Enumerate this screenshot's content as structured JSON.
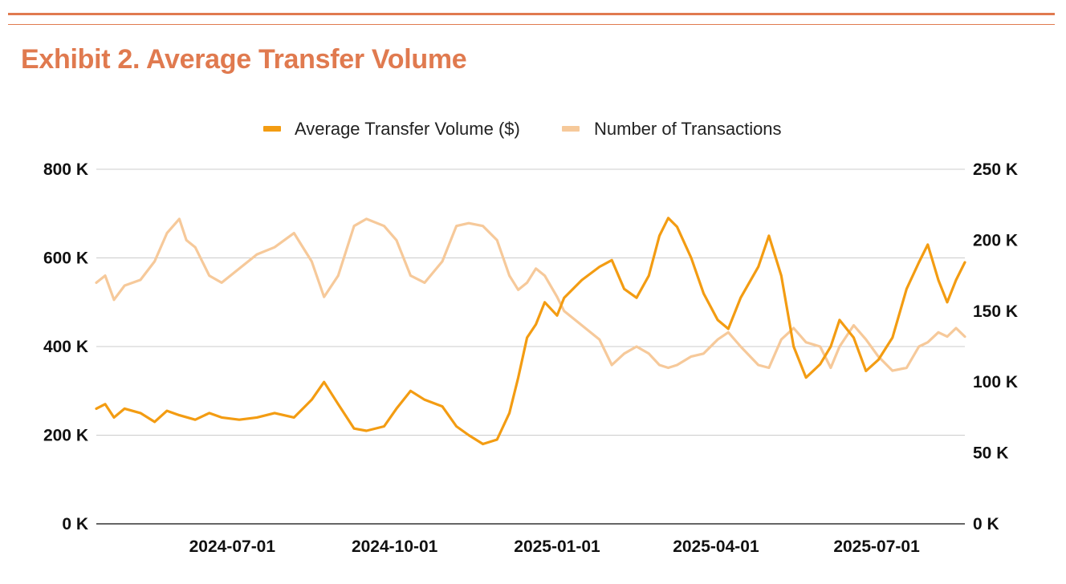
{
  "page": {
    "title": "Exhibit 2. Average Transfer Volume",
    "accent_color": "#e07a4f"
  },
  "chart_data": {
    "type": "line",
    "legend_placement": "top-center",
    "grid": true,
    "x_range": [
      "2024-04-15",
      "2025-08-20"
    ],
    "x_ticks": [
      "2024-07-01",
      "2024-10-01",
      "2025-01-01",
      "2025-04-01",
      "2025-07-01"
    ],
    "y_left": {
      "range": [
        0,
        800000
      ],
      "ticks": [
        0,
        200000,
        400000,
        600000,
        800000
      ],
      "tick_labels": [
        "0 K",
        "200 K",
        "400 K",
        "600 K",
        "800 K"
      ]
    },
    "y_right": {
      "range": [
        0,
        250000
      ],
      "ticks": [
        0,
        50000,
        100000,
        150000,
        200000,
        250000
      ],
      "tick_labels": [
        "0 K",
        "50 K",
        "100 K",
        "150 K",
        "200 K",
        "250 K"
      ]
    },
    "series": [
      {
        "name": "Average Transfer Volume ($)",
        "axis": "left",
        "color": "#f39c12",
        "points": [
          [
            "2024-04-15",
            260000
          ],
          [
            "2024-04-20",
            270000
          ],
          [
            "2024-04-25",
            240000
          ],
          [
            "2024-05-01",
            260000
          ],
          [
            "2024-05-10",
            250000
          ],
          [
            "2024-05-18",
            230000
          ],
          [
            "2024-05-25",
            255000
          ],
          [
            "2024-06-01",
            245000
          ],
          [
            "2024-06-10",
            235000
          ],
          [
            "2024-06-18",
            250000
          ],
          [
            "2024-06-25",
            240000
          ],
          [
            "2024-07-05",
            235000
          ],
          [
            "2024-07-15",
            240000
          ],
          [
            "2024-07-25",
            250000
          ],
          [
            "2024-08-05",
            240000
          ],
          [
            "2024-08-15",
            280000
          ],
          [
            "2024-08-22",
            320000
          ],
          [
            "2024-08-30",
            270000
          ],
          [
            "2024-09-08",
            215000
          ],
          [
            "2024-09-15",
            210000
          ],
          [
            "2024-09-25",
            220000
          ],
          [
            "2024-10-02",
            260000
          ],
          [
            "2024-10-10",
            300000
          ],
          [
            "2024-10-18",
            280000
          ],
          [
            "2024-10-28",
            265000
          ],
          [
            "2024-11-05",
            220000
          ],
          [
            "2024-11-12",
            200000
          ],
          [
            "2024-11-20",
            180000
          ],
          [
            "2024-11-28",
            190000
          ],
          [
            "2024-12-05",
            250000
          ],
          [
            "2024-12-10",
            330000
          ],
          [
            "2024-12-15",
            420000
          ],
          [
            "2024-12-20",
            450000
          ],
          [
            "2024-12-25",
            500000
          ],
          [
            "2025-01-01",
            470000
          ],
          [
            "2025-01-05",
            510000
          ],
          [
            "2025-01-15",
            550000
          ],
          [
            "2025-01-25",
            580000
          ],
          [
            "2025-02-01",
            595000
          ],
          [
            "2025-02-08",
            530000
          ],
          [
            "2025-02-15",
            510000
          ],
          [
            "2025-02-22",
            560000
          ],
          [
            "2025-02-28",
            650000
          ],
          [
            "2025-03-05",
            690000
          ],
          [
            "2025-03-10",
            670000
          ],
          [
            "2025-03-18",
            600000
          ],
          [
            "2025-03-25",
            520000
          ],
          [
            "2025-04-02",
            460000
          ],
          [
            "2025-04-08",
            440000
          ],
          [
            "2025-04-15",
            510000
          ],
          [
            "2025-04-25",
            580000
          ],
          [
            "2025-05-01",
            650000
          ],
          [
            "2025-05-08",
            560000
          ],
          [
            "2025-05-15",
            400000
          ],
          [
            "2025-05-22",
            330000
          ],
          [
            "2025-05-30",
            360000
          ],
          [
            "2025-06-05",
            400000
          ],
          [
            "2025-06-10",
            460000
          ],
          [
            "2025-06-18",
            420000
          ],
          [
            "2025-06-25",
            345000
          ],
          [
            "2025-07-02",
            370000
          ],
          [
            "2025-07-10",
            420000
          ],
          [
            "2025-07-18",
            530000
          ],
          [
            "2025-07-25",
            590000
          ],
          [
            "2025-07-30",
            630000
          ],
          [
            "2025-08-05",
            550000
          ],
          [
            "2025-08-10",
            500000
          ],
          [
            "2025-08-15",
            550000
          ],
          [
            "2025-08-20",
            590000
          ]
        ]
      },
      {
        "name": "Number of Transactions",
        "axis": "right",
        "color": "#f6c99a",
        "points": [
          [
            "2024-04-15",
            170000
          ],
          [
            "2024-04-20",
            175000
          ],
          [
            "2024-04-25",
            158000
          ],
          [
            "2024-05-01",
            168000
          ],
          [
            "2024-05-10",
            172000
          ],
          [
            "2024-05-18",
            185000
          ],
          [
            "2024-05-25",
            205000
          ],
          [
            "2024-06-01",
            215000
          ],
          [
            "2024-06-05",
            200000
          ],
          [
            "2024-06-10",
            195000
          ],
          [
            "2024-06-18",
            175000
          ],
          [
            "2024-06-25",
            170000
          ],
          [
            "2024-07-05",
            180000
          ],
          [
            "2024-07-15",
            190000
          ],
          [
            "2024-07-25",
            195000
          ],
          [
            "2024-08-05",
            205000
          ],
          [
            "2024-08-15",
            185000
          ],
          [
            "2024-08-22",
            160000
          ],
          [
            "2024-08-30",
            175000
          ],
          [
            "2024-09-08",
            210000
          ],
          [
            "2024-09-15",
            215000
          ],
          [
            "2024-09-25",
            210000
          ],
          [
            "2024-10-02",
            200000
          ],
          [
            "2024-10-10",
            175000
          ],
          [
            "2024-10-18",
            170000
          ],
          [
            "2024-10-28",
            185000
          ],
          [
            "2024-11-05",
            210000
          ],
          [
            "2024-11-12",
            212000
          ],
          [
            "2024-11-20",
            210000
          ],
          [
            "2024-11-28",
            200000
          ],
          [
            "2024-12-05",
            175000
          ],
          [
            "2024-12-10",
            165000
          ],
          [
            "2024-12-15",
            170000
          ],
          [
            "2024-12-20",
            180000
          ],
          [
            "2024-12-25",
            175000
          ],
          [
            "2025-01-01",
            160000
          ],
          [
            "2025-01-05",
            150000
          ],
          [
            "2025-01-15",
            140000
          ],
          [
            "2025-01-25",
            130000
          ],
          [
            "2025-02-01",
            112000
          ],
          [
            "2025-02-08",
            120000
          ],
          [
            "2025-02-15",
            125000
          ],
          [
            "2025-02-22",
            120000
          ],
          [
            "2025-02-28",
            112000
          ],
          [
            "2025-03-05",
            110000
          ],
          [
            "2025-03-10",
            112000
          ],
          [
            "2025-03-18",
            118000
          ],
          [
            "2025-03-25",
            120000
          ],
          [
            "2025-04-02",
            130000
          ],
          [
            "2025-04-08",
            135000
          ],
          [
            "2025-04-15",
            125000
          ],
          [
            "2025-04-25",
            112000
          ],
          [
            "2025-05-01",
            110000
          ],
          [
            "2025-05-08",
            130000
          ],
          [
            "2025-05-15",
            138000
          ],
          [
            "2025-05-22",
            128000
          ],
          [
            "2025-05-30",
            125000
          ],
          [
            "2025-06-05",
            110000
          ],
          [
            "2025-06-10",
            125000
          ],
          [
            "2025-06-18",
            140000
          ],
          [
            "2025-06-25",
            130000
          ],
          [
            "2025-07-02",
            118000
          ],
          [
            "2025-07-10",
            108000
          ],
          [
            "2025-07-18",
            110000
          ],
          [
            "2025-07-25",
            125000
          ],
          [
            "2025-07-30",
            128000
          ],
          [
            "2025-08-05",
            135000
          ],
          [
            "2025-08-10",
            132000
          ],
          [
            "2025-08-15",
            138000
          ],
          [
            "2025-08-20",
            132000
          ]
        ]
      }
    ]
  }
}
